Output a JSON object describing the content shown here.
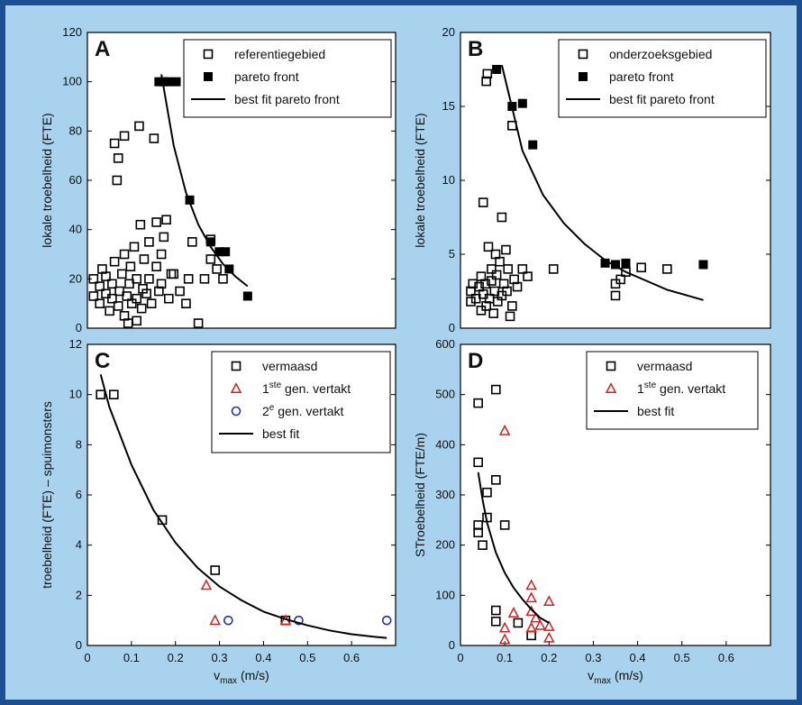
{
  "figure": {
    "background": "#a8d2ee",
    "border_color": "#1b4f8f",
    "plot_background": "#ffffff"
  },
  "chart_data": [
    {
      "id": "A",
      "type": "scatter",
      "panel_letter": "A",
      "xlim": [
        0,
        0.25
      ],
      "ylim": [
        0,
        120
      ],
      "xticks": [],
      "yticks": [
        0,
        20,
        40,
        60,
        80,
        100,
        120
      ],
      "xlabel": "",
      "ylabel": "lokale troebelheid (FTE)",
      "legend_position": "top-right",
      "legend": [
        {
          "label": "referentiegebied",
          "marker": "open-square"
        },
        {
          "label": "pareto front",
          "marker": "filled-square"
        },
        {
          "label": "best fit pareto front",
          "marker": "line"
        }
      ],
      "series": [
        {
          "name": "referentiegebied",
          "marker": "open-square",
          "color": "#000000",
          "points": [
            [
              0.005,
              13
            ],
            [
              0.005,
              20
            ],
            [
              0.01,
              10
            ],
            [
              0.01,
              17
            ],
            [
              0.012,
              24
            ],
            [
              0.015,
              14
            ],
            [
              0.015,
              21
            ],
            [
              0.018,
              7
            ],
            [
              0.02,
              12
            ],
            [
              0.02,
              18
            ],
            [
              0.022,
              27
            ],
            [
              0.022,
              75
            ],
            [
              0.024,
              60
            ],
            [
              0.025,
              69
            ],
            [
              0.025,
              9
            ],
            [
              0.026,
              15
            ],
            [
              0.028,
              22
            ],
            [
              0.03,
              5
            ],
            [
              0.03,
              30
            ],
            [
              0.03,
              78
            ],
            [
              0.032,
              13
            ],
            [
              0.033,
              2
            ],
            [
              0.034,
              18
            ],
            [
              0.035,
              25
            ],
            [
              0.036,
              10
            ],
            [
              0.038,
              33
            ],
            [
              0.04,
              3
            ],
            [
              0.04,
              12
            ],
            [
              0.04,
              20
            ],
            [
              0.042,
              82
            ],
            [
              0.043,
              42
            ],
            [
              0.044,
              8
            ],
            [
              0.045,
              16
            ],
            [
              0.046,
              28
            ],
            [
              0.048,
              14
            ],
            [
              0.05,
              20
            ],
            [
              0.05,
              35
            ],
            [
              0.052,
              10
            ],
            [
              0.054,
              77
            ],
            [
              0.056,
              25
            ],
            [
              0.056,
              43
            ],
            [
              0.058,
              15
            ],
            [
              0.06,
              18
            ],
            [
              0.06,
              30
            ],
            [
              0.062,
              37
            ],
            [
              0.064,
              44
            ],
            [
              0.066,
              12
            ],
            [
              0.068,
              22
            ],
            [
              0.07,
              22
            ],
            [
              0.075,
              15
            ],
            [
              0.08,
              10
            ],
            [
              0.082,
              20
            ],
            [
              0.085,
              35
            ],
            [
              0.09,
              2
            ],
            [
              0.095,
              20
            ],
            [
              0.1,
              28
            ],
            [
              0.1,
              36
            ],
            [
              0.105,
              24
            ],
            [
              0.11,
              20
            ]
          ]
        },
        {
          "name": "pareto front",
          "marker": "filled-square",
          "color": "#000000",
          "points": [
            [
              0.058,
              100
            ],
            [
              0.062,
              100
            ],
            [
              0.066,
              100
            ],
            [
              0.072,
              100
            ],
            [
              0.083,
              52
            ],
            [
              0.1,
              35
            ],
            [
              0.107,
              31
            ],
            [
              0.112,
              31
            ],
            [
              0.115,
              24
            ],
            [
              0.13,
              13
            ]
          ]
        },
        {
          "name": "best fit pareto front",
          "marker": "line",
          "color": "#000000",
          "points": [
            [
              0.06,
              103
            ],
            [
              0.07,
              74
            ],
            [
              0.08,
              55
            ],
            [
              0.09,
              42
            ],
            [
              0.1,
              33
            ],
            [
              0.11,
              26
            ],
            [
              0.12,
              21
            ],
            [
              0.13,
              17
            ]
          ]
        }
      ]
    },
    {
      "id": "B",
      "type": "scatter",
      "panel_letter": "B",
      "xlim": [
        0,
        0.3
      ],
      "ylim": [
        0,
        20
      ],
      "xticks": [],
      "yticks": [
        0,
        5,
        10,
        15,
        20
      ],
      "xlabel": "",
      "ylabel": "lokale troebelheid (FTE)",
      "legend_position": "top-right",
      "legend": [
        {
          "label": "onderzoeksgebied",
          "marker": "open-square"
        },
        {
          "label": "pareto front",
          "marker": "filled-square"
        },
        {
          "label": "best fit pareto front",
          "marker": "line"
        }
      ],
      "series": [
        {
          "name": "onderzoeksgebied",
          "marker": "open-square",
          "color": "#000000",
          "points": [
            [
              0.01,
              1.8
            ],
            [
              0.01,
              2.5
            ],
            [
              0.012,
              3.0
            ],
            [
              0.015,
              2.0
            ],
            [
              0.018,
              2.8
            ],
            [
              0.02,
              3.5
            ],
            [
              0.02,
              1.2
            ],
            [
              0.022,
              2.3
            ],
            [
              0.022,
              8.5
            ],
            [
              0.024,
              3.0
            ],
            [
              0.025,
              1.5
            ],
            [
              0.025,
              16.7
            ],
            [
              0.026,
              17.2
            ],
            [
              0.027,
              5.5
            ],
            [
              0.028,
              2.0
            ],
            [
              0.03,
              3.2
            ],
            [
              0.03,
              4.0
            ],
            [
              0.032,
              1.0
            ],
            [
              0.033,
              2.5
            ],
            [
              0.034,
              5.0
            ],
            [
              0.035,
              3.6
            ],
            [
              0.036,
              1.8
            ],
            [
              0.038,
              4.5
            ],
            [
              0.04,
              2.2
            ],
            [
              0.04,
              7.5
            ],
            [
              0.042,
              3.0
            ],
            [
              0.044,
              5.3
            ],
            [
              0.045,
              2.5
            ],
            [
              0.046,
              4.0
            ],
            [
              0.048,
              0.8
            ],
            [
              0.05,
              13.7
            ],
            [
              0.05,
              1.5
            ],
            [
              0.052,
              3.3
            ],
            [
              0.055,
              2.8
            ],
            [
              0.06,
              4.0
            ],
            [
              0.065,
              3.5
            ],
            [
              0.09,
              4.0
            ],
            [
              0.15,
              2.2
            ],
            [
              0.15,
              3.0
            ],
            [
              0.155,
              3.3
            ],
            [
              0.16,
              3.8
            ],
            [
              0.175,
              4.1
            ],
            [
              0.2,
              4.0
            ]
          ]
        },
        {
          "name": "pareto front",
          "marker": "filled-square",
          "color": "#000000",
          "points": [
            [
              0.035,
              17.5
            ],
            [
              0.05,
              15.0
            ],
            [
              0.06,
              15.2
            ],
            [
              0.07,
              12.4
            ],
            [
              0.14,
              4.4
            ],
            [
              0.15,
              4.3
            ],
            [
              0.16,
              4.4
            ],
            [
              0.235,
              4.3
            ]
          ]
        },
        {
          "name": "best fit pareto front",
          "marker": "line",
          "color": "#000000",
          "points": [
            [
              0.04,
              17.8
            ],
            [
              0.06,
              12.0
            ],
            [
              0.08,
              9.0
            ],
            [
              0.1,
              7.1
            ],
            [
              0.12,
              5.7
            ],
            [
              0.14,
              4.6
            ],
            [
              0.16,
              3.8
            ],
            [
              0.18,
              3.2
            ],
            [
              0.2,
              2.6
            ],
            [
              0.22,
              2.2
            ],
            [
              0.235,
              1.9
            ]
          ]
        }
      ]
    },
    {
      "id": "C",
      "type": "scatter",
      "panel_letter": "C",
      "xlim": [
        0,
        0.7
      ],
      "ylim": [
        0,
        12
      ],
      "xticks": [
        0,
        0.1,
        0.2,
        0.3,
        0.4,
        0.5,
        0.6
      ],
      "yticks": [
        0,
        2,
        4,
        6,
        8,
        10,
        12
      ],
      "xlabel": "v_max (m/s)",
      "ylabel": "troebelheid (FTE) – spuimonsters",
      "legend_position": "top-right",
      "legend": [
        {
          "label": "vermaasd",
          "marker": "open-square",
          "color": "#000000"
        },
        {
          "label": "1ste gen. vertakt",
          "marker": "open-triangle",
          "color": "#cc2222"
        },
        {
          "label": "2e gen. vertakt",
          "marker": "open-circle",
          "color": "#2233aa"
        },
        {
          "label": "best fit",
          "marker": "line",
          "color": "#000000"
        }
      ],
      "series": [
        {
          "name": "vermaasd",
          "marker": "open-square",
          "color": "#000000",
          "points": [
            [
              0.03,
              10
            ],
            [
              0.06,
              10
            ],
            [
              0.17,
              5
            ],
            [
              0.29,
              3
            ],
            [
              0.45,
              1
            ]
          ]
        },
        {
          "name": "1ste gen. vertakt",
          "marker": "open-triangle",
          "color": "#cc2222",
          "points": [
            [
              0.27,
              2.4
            ],
            [
              0.29,
              1.0
            ],
            [
              0.45,
              1.0
            ]
          ]
        },
        {
          "name": "2e gen. vertakt",
          "marker": "open-circle",
          "color": "#2233aa",
          "points": [
            [
              0.32,
              1.0
            ],
            [
              0.48,
              1.0
            ],
            [
              0.68,
              1.0
            ]
          ]
        },
        {
          "name": "best fit",
          "marker": "line",
          "color": "#000000",
          "points": [
            [
              0.03,
              10.8
            ],
            [
              0.05,
              9.5
            ],
            [
              0.1,
              7.2
            ],
            [
              0.15,
              5.4
            ],
            [
              0.2,
              4.1
            ],
            [
              0.25,
              3.1
            ],
            [
              0.3,
              2.35
            ],
            [
              0.35,
              1.8
            ],
            [
              0.4,
              1.35
            ],
            [
              0.45,
              1.05
            ],
            [
              0.5,
              0.8
            ],
            [
              0.55,
              0.6
            ],
            [
              0.6,
              0.45
            ],
            [
              0.65,
              0.35
            ],
            [
              0.68,
              0.3
            ]
          ]
        }
      ]
    },
    {
      "id": "D",
      "type": "scatter",
      "panel_letter": "D",
      "xlim": [
        0,
        0.7
      ],
      "ylim": [
        0,
        600
      ],
      "xticks": [
        0,
        0.1,
        0.2,
        0.3,
        0.4,
        0.5,
        0.6
      ],
      "yticks": [
        0,
        100,
        200,
        300,
        400,
        500,
        600
      ],
      "xlabel": "v_max (m/s)",
      "ylabel": "STroebelheid (FTE/m)",
      "legend_position": "top-right",
      "legend": [
        {
          "label": "vermaasd",
          "marker": "open-square",
          "color": "#000000"
        },
        {
          "label": "1ste gen. vertakt",
          "marker": "open-triangle",
          "color": "#cc2222"
        },
        {
          "label": "best fit",
          "marker": "line",
          "color": "#000000"
        }
      ],
      "series": [
        {
          "name": "vermaasd",
          "marker": "open-square",
          "color": "#000000",
          "points": [
            [
              0.04,
              483
            ],
            [
              0.04,
              365
            ],
            [
              0.04,
              240
            ],
            [
              0.04,
              225
            ],
            [
              0.05,
              200
            ],
            [
              0.06,
              305
            ],
            [
              0.06,
              255
            ],
            [
              0.08,
              510
            ],
            [
              0.08,
              330
            ],
            [
              0.08,
              70
            ],
            [
              0.08,
              48
            ],
            [
              0.1,
              240
            ],
            [
              0.13,
              45
            ],
            [
              0.16,
              20
            ]
          ]
        },
        {
          "name": "1ste gen. vertakt",
          "marker": "open-triangle",
          "color": "#cc2222",
          "points": [
            [
              0.1,
              428
            ],
            [
              0.1,
              35
            ],
            [
              0.1,
              12
            ],
            [
              0.12,
              65
            ],
            [
              0.16,
              120
            ],
            [
              0.16,
              95
            ],
            [
              0.16,
              68
            ],
            [
              0.16,
              35
            ],
            [
              0.17,
              55
            ],
            [
              0.18,
              40
            ],
            [
              0.2,
              88
            ],
            [
              0.2,
              38
            ],
            [
              0.2,
              15
            ]
          ]
        },
        {
          "name": "best fit",
          "marker": "line",
          "color": "#000000",
          "points": [
            [
              0.04,
              345
            ],
            [
              0.05,
              290
            ],
            [
              0.06,
              245
            ],
            [
              0.08,
              185
            ],
            [
              0.1,
              145
            ],
            [
              0.12,
              115
            ],
            [
              0.14,
              92
            ],
            [
              0.16,
              72
            ],
            [
              0.18,
              55
            ],
            [
              0.2,
              45
            ]
          ]
        }
      ]
    }
  ]
}
